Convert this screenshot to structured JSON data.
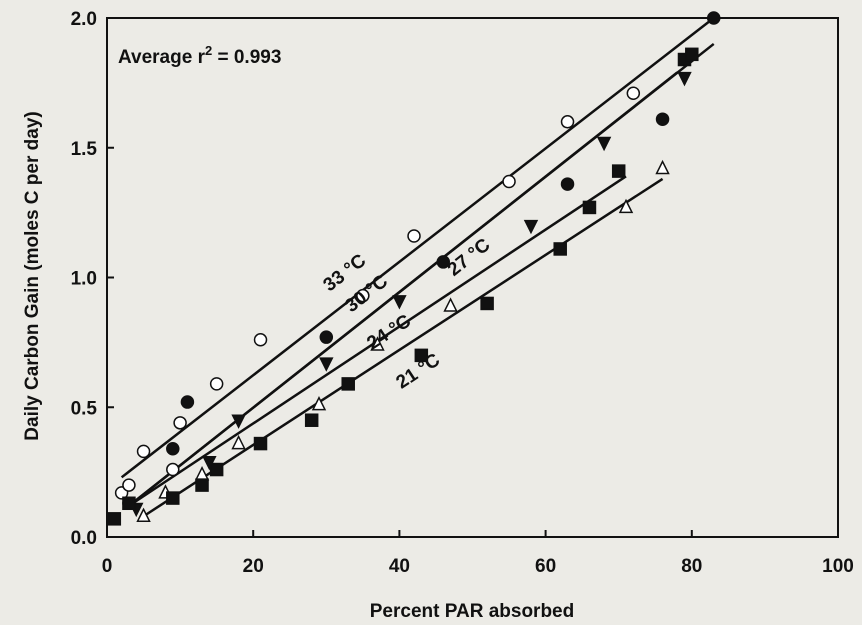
{
  "chart_data": {
    "type": "scatter",
    "xlabel": "Percent PAR absorbed",
    "ylabel": "Daily Carbon Gain (moles C per day)",
    "xlim": [
      0,
      100
    ],
    "ylim": [
      0,
      2.0
    ],
    "xticks": [
      "0",
      "20",
      "40",
      "60",
      "80",
      "100"
    ],
    "yticks": [
      "0.0",
      "0.5",
      "1.0",
      "1.5",
      "2.0"
    ],
    "grid": false,
    "annotation": {
      "prefix": "Average r",
      "sup": "2",
      "suffix": " = 0.993"
    },
    "series": [
      {
        "name": "33 °C",
        "marker": "open-circle",
        "x": [
          2,
          3,
          5,
          9,
          10,
          15,
          21,
          35,
          42,
          55,
          63,
          72
        ],
        "y": [
          0.17,
          0.2,
          0.33,
          0.26,
          0.44,
          0.59,
          0.76,
          0.93,
          1.16,
          1.37,
          1.6,
          1.71
        ],
        "fit": [
          [
            2,
            0.23
          ],
          [
            83,
            2.0
          ]
        ],
        "label_pos": {
          "x": 33,
          "y": 1.0
        }
      },
      {
        "name": "30 °C",
        "marker": "filled-circle",
        "x": [
          3,
          9,
          11,
          30,
          46,
          63,
          76,
          83
        ],
        "y": [
          0.13,
          0.34,
          0.52,
          0.77,
          1.06,
          1.36,
          1.61,
          2.0
        ],
        "fit": [
          [
            3,
            0.12
          ],
          [
            83,
            1.9
          ]
        ],
        "label_pos": {
          "x": 36,
          "y": 0.92
        }
      },
      {
        "name": "27 °C",
        "marker": "filled-triangle-down",
        "x": [
          4,
          14,
          18,
          30,
          40,
          58,
          68,
          79
        ],
        "y": [
          0.11,
          0.29,
          0.45,
          0.67,
          0.91,
          1.2,
          1.52,
          1.77
        ],
        "fit": [
          [
            3,
            0.12
          ],
          [
            78,
            1.79
          ]
        ],
        "label_pos": {
          "x": 50,
          "y": 1.06
        }
      },
      {
        "name": "24 °C",
        "marker": "open-triangle-up",
        "x": [
          5,
          8,
          13,
          18,
          29,
          37,
          47,
          71,
          76
        ],
        "y": [
          0.08,
          0.17,
          0.24,
          0.36,
          0.51,
          0.74,
          0.89,
          1.27,
          1.42
        ],
        "fit": [
          [
            5,
            0.08
          ],
          [
            76,
            1.38
          ]
        ],
        "label_pos": {
          "x": 39,
          "y": 0.77
        }
      },
      {
        "name": "21 °C",
        "marker": "filled-square",
        "x": [
          1,
          3,
          9,
          13,
          15,
          21,
          28,
          33,
          43,
          52,
          62,
          66,
          70,
          79,
          80
        ],
        "y": [
          0.07,
          0.13,
          0.15,
          0.2,
          0.26,
          0.36,
          0.45,
          0.59,
          0.7,
          0.9,
          1.11,
          1.27,
          1.41,
          1.84,
          1.86
        ],
        "fit": [
          [
            3,
            0.12
          ],
          [
            71,
            1.39
          ]
        ],
        "label_pos": {
          "x": 43,
          "y": 0.62
        }
      }
    ]
  }
}
